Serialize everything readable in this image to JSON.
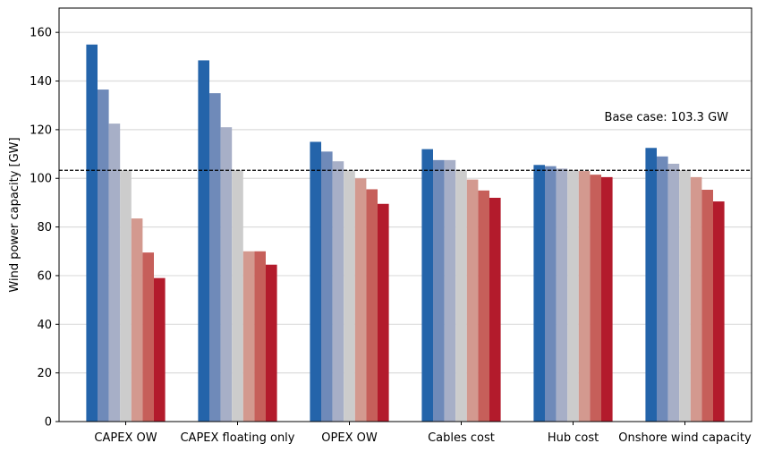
{
  "chart_data": {
    "type": "bar",
    "title": "",
    "xlabel": "",
    "ylabel": "Wind power capacity [GW]",
    "ylim": [
      0,
      170
    ],
    "yticks": [
      0,
      20,
      40,
      60,
      80,
      100,
      120,
      140,
      160
    ],
    "grid": "horizontal",
    "categories": [
      "CAPEX OW",
      "CAPEX floating only",
      "OPEX OW",
      "Cables cost",
      "Hub cost",
      "Onshore wind capacity"
    ],
    "bar_colors": [
      "#2464aa",
      "#6f8ab9",
      "#a7afc7",
      "#cccccc",
      "#d3998f",
      "#c65f5a",
      "#b31b2c"
    ],
    "series": [
      {
        "values": [
          155,
          148.5,
          115,
          112,
          105.5,
          112.5
        ]
      },
      {
        "values": [
          136.5,
          135,
          111,
          107.5,
          105,
          109
        ]
      },
      {
        "values": [
          122.5,
          121,
          107,
          107.5,
          104,
          106
        ]
      },
      {
        "values": [
          103.3,
          103.3,
          103.3,
          103.3,
          103.3,
          103.3
        ]
      },
      {
        "values": [
          83.5,
          70,
          100,
          99.5,
          103,
          100.5
        ]
      },
      {
        "values": [
          69.5,
          70,
          95.5,
          95,
          101.5,
          95.3
        ]
      },
      {
        "values": [
          59,
          64.5,
          89.5,
          92,
          100.5,
          90.5
        ]
      }
    ],
    "reference_line": {
      "value": 103.3,
      "style": "dashed",
      "color": "#000000",
      "label": "Base case: 103.3 GW"
    }
  }
}
